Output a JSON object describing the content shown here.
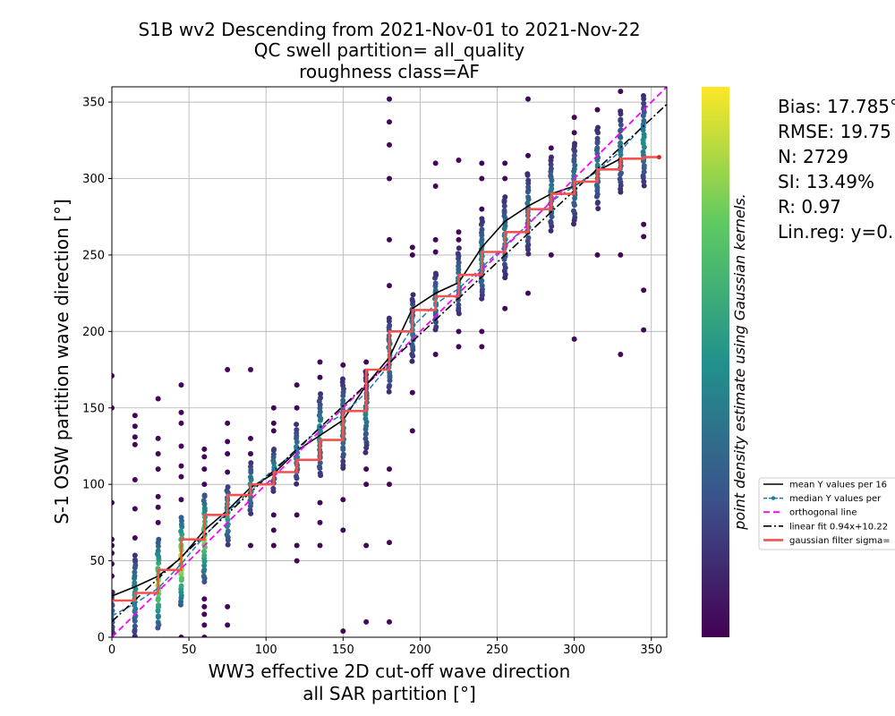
{
  "chart_data": {
    "type": "scatter",
    "title_lines": [
      "S1B wv2 Descending from 2021-Nov-01 to 2021-Nov-22",
      "QC swell partition= all_quality",
      "roughness class=AF"
    ],
    "xlabel_lines": [
      "WW3 effective 2D cut-off wave direction",
      "all SAR partition [°]"
    ],
    "ylabel": "S-1 OSW partition wave direction [°]",
    "xlim": [
      0,
      360
    ],
    "ylim": [
      0,
      360
    ],
    "xticks": [
      0,
      50,
      100,
      150,
      200,
      250,
      300,
      350
    ],
    "yticks": [
      0,
      50,
      100,
      150,
      200,
      250,
      300,
      350
    ],
    "grid": true,
    "colorbar_label": "point density estimate using Gaussian kernels.",
    "colormap": [
      "#440154",
      "#3b528b",
      "#21918c",
      "#5ec962",
      "#fde725"
    ],
    "stats": [
      "Bias: 17.785°",
      "RMSE: 19.75",
      "N: 2729",
      "SI: 13.49%",
      "R: 0.97",
      "Lin.reg: y=0."
    ],
    "legend": {
      "placement": "right of plot",
      "entries": [
        {
          "label": "mean Y values per 16",
          "color": "#000000",
          "style": "solid"
        },
        {
          "label": "median Y values per",
          "color": "#1f77b4",
          "style": "dashed-dot-marker"
        },
        {
          "label": "orthogonal line",
          "color": "#ff00ff",
          "style": "dashed"
        },
        {
          "label": "linear fit 0.94x+10.22",
          "color": "#000000",
          "style": "dashdot"
        },
        {
          "label": "gaussian filter sigma=",
          "color": "#ef5350",
          "style": "thick"
        }
      ]
    },
    "x_bin_columns": [
      0,
      15,
      30,
      45,
      60,
      75,
      90,
      105,
      120,
      135,
      150,
      165,
      180,
      195,
      210,
      225,
      240,
      255,
      270,
      285,
      300,
      315,
      330,
      345
    ],
    "scatter_columns": [
      {
        "x": 0,
        "ymin": 0,
        "ymax": 30,
        "density": 0.35,
        "outliers": [
          40,
          48,
          55,
          60,
          64,
          88,
          150,
          171
        ]
      },
      {
        "x": 15,
        "ymin": 0,
        "ymax": 55,
        "density": 0.55,
        "outliers": [
          65,
          84,
          103,
          126,
          131,
          138,
          145
        ]
      },
      {
        "x": 30,
        "ymin": 5,
        "ymax": 65,
        "density": 0.9,
        "outliers": [
          75,
          85,
          92,
          110,
          120,
          130,
          156
        ]
      },
      {
        "x": 45,
        "ymin": 20,
        "ymax": 80,
        "density": 1.0,
        "outliers": [
          0,
          90,
          105,
          112,
          125,
          140,
          147,
          165
        ]
      },
      {
        "x": 60,
        "ymin": 35,
        "ymax": 95,
        "density": 0.85,
        "outliers": [
          0,
          8,
          15,
          20,
          25,
          100,
          110,
          118,
          123
        ]
      },
      {
        "x": 75,
        "ymin": 60,
        "ymax": 100,
        "density": 0.6,
        "outliers": [
          8,
          20,
          108,
          120,
          128,
          140,
          175
        ]
      },
      {
        "x": 90,
        "ymin": 80,
        "ymax": 115,
        "density": 0.55,
        "outliers": [
          60,
          120,
          130,
          175
        ]
      },
      {
        "x": 105,
        "ymin": 95,
        "ymax": 125,
        "density": 0.5,
        "outliers": [
          60,
          70,
          80,
          135,
          140,
          150
        ]
      },
      {
        "x": 120,
        "ymin": 100,
        "ymax": 140,
        "density": 0.5,
        "outliers": [
          50,
          60,
          80,
          150,
          165
        ]
      },
      {
        "x": 135,
        "ymin": 105,
        "ymax": 160,
        "density": 0.55,
        "outliers": [
          60,
          75,
          88,
          170,
          180
        ]
      },
      {
        "x": 150,
        "ymin": 110,
        "ymax": 170,
        "density": 0.5,
        "outliers": [
          4,
          70,
          90,
          178
        ]
      },
      {
        "x": 165,
        "ymin": 120,
        "ymax": 175,
        "density": 0.45,
        "outliers": [
          10,
          60,
          100,
          110,
          180
        ]
      },
      {
        "x": 180,
        "ymin": 160,
        "ymax": 210,
        "density": 0.5,
        "outliers": [
          10,
          62,
          100,
          110,
          230,
          260,
          300,
          322,
          337,
          352
        ]
      },
      {
        "x": 195,
        "ymin": 180,
        "ymax": 225,
        "density": 0.45,
        "outliers": [
          135,
          160,
          250,
          255
        ]
      },
      {
        "x": 210,
        "ymin": 200,
        "ymax": 240,
        "density": 0.45,
        "outliers": [
          185,
          252,
          260,
          295,
          310
        ]
      },
      {
        "x": 225,
        "ymin": 210,
        "ymax": 255,
        "density": 0.45,
        "outliers": [
          190,
          200,
          260,
          265,
          312
        ]
      },
      {
        "x": 240,
        "ymin": 220,
        "ymax": 275,
        "density": 0.5,
        "outliers": [
          190,
          200,
          280,
          300,
          310
        ]
      },
      {
        "x": 255,
        "ymin": 235,
        "ymax": 290,
        "density": 0.45,
        "outliers": [
          215,
          300,
          310
        ]
      },
      {
        "x": 270,
        "ymin": 250,
        "ymax": 305,
        "density": 0.45,
        "outliers": [
          225,
          315,
          352
        ]
      },
      {
        "x": 285,
        "ymin": 265,
        "ymax": 315,
        "density": 0.45,
        "outliers": [
          250,
          320
        ]
      },
      {
        "x": 300,
        "ymin": 270,
        "ymax": 325,
        "density": 0.45,
        "outliers": [
          195,
          330,
          340
        ]
      },
      {
        "x": 315,
        "ymin": 280,
        "ymax": 335,
        "density": 0.45,
        "outliers": [
          250,
          345
        ]
      },
      {
        "x": 330,
        "ymin": 290,
        "ymax": 345,
        "density": 0.45,
        "outliers": [
          185,
          250,
          357
        ]
      },
      {
        "x": 345,
        "ymin": 295,
        "ymax": 355,
        "density": 0.5,
        "outliers": [
          201,
          227,
          262,
          270
        ]
      }
    ],
    "series": [
      {
        "name": "mean Y values per 16",
        "x": [
          0,
          15,
          30,
          45,
          60,
          75,
          90,
          105,
          120,
          135,
          150,
          165,
          180,
          195,
          210,
          225,
          240,
          255,
          270,
          285,
          300,
          315,
          330
        ],
        "y": [
          27,
          33,
          40,
          52,
          70,
          83,
          98,
          107,
          122,
          132,
          142,
          165,
          183,
          215,
          225,
          232,
          255,
          272,
          282,
          290,
          295,
          305,
          313
        ]
      },
      {
        "name": "median Y values per",
        "x": [
          0,
          15,
          30,
          45,
          60,
          75,
          90,
          105,
          120,
          135,
          150,
          165,
          180,
          195,
          210,
          225,
          240,
          255,
          270,
          285,
          300,
          315,
          330,
          345
        ],
        "y": [
          14,
          22,
          32,
          48,
          66,
          82,
          96,
          110,
          122,
          137,
          146,
          160,
          178,
          203,
          218,
          228,
          242,
          256,
          270,
          285,
          295,
          305,
          318,
          335
        ]
      },
      {
        "name": "orthogonal line",
        "x": [
          0,
          360
        ],
        "y": [
          0,
          360
        ]
      },
      {
        "name": "linear fit 0.94x+10.22",
        "x": [
          0,
          360
        ],
        "y": [
          10.22,
          348.6
        ]
      },
      {
        "name": "gaussian filter sigma=",
        "x": [
          0,
          15,
          15,
          30,
          30,
          45,
          45,
          60,
          60,
          75,
          75,
          90,
          90,
          105,
          105,
          120,
          120,
          135,
          135,
          150,
          150,
          165,
          165,
          180,
          180,
          195,
          195,
          210,
          210,
          225,
          225,
          240,
          240,
          255,
          255,
          270,
          270,
          285,
          285,
          300,
          300,
          315,
          315,
          330,
          330,
          345,
          345,
          355
        ],
        "y": [
          24,
          24,
          29,
          29,
          44,
          44,
          64,
          64,
          80,
          80,
          93,
          93,
          100,
          100,
          108,
          108,
          116,
          116,
          129,
          129,
          148,
          148,
          175,
          175,
          200,
          200,
          214,
          214,
          223,
          223,
          237,
          237,
          252,
          252,
          265,
          265,
          280,
          280,
          290,
          290,
          298,
          298,
          306,
          306,
          313,
          313,
          314,
          314
        ]
      }
    ]
  }
}
